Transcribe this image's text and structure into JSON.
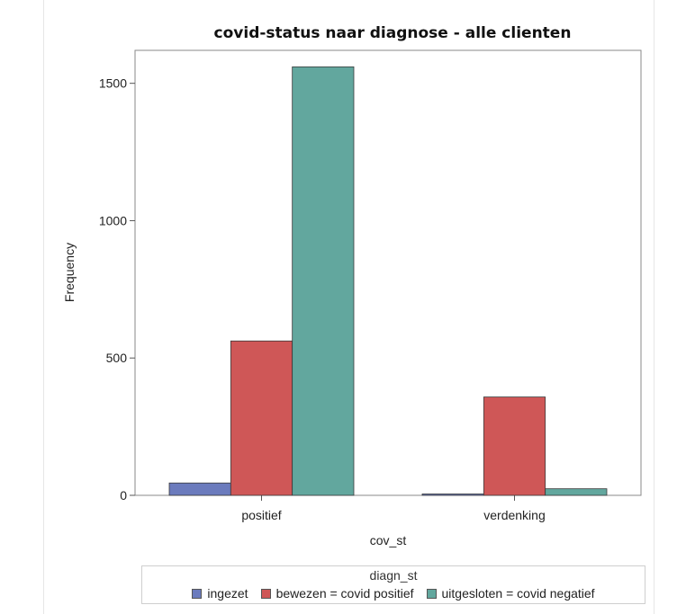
{
  "chart_data": {
    "type": "bar",
    "title": "covid-status naar diagnose - alle clienten",
    "xlabel": "cov_st",
    "ylabel": "Frequency",
    "categories": [
      "positief",
      "verdenking"
    ],
    "series": [
      {
        "name": "ingezet",
        "color": "#6b7bbd",
        "values": [
          45,
          5
        ]
      },
      {
        "name": "bewezen = covid positief",
        "color": "#cf5757",
        "values": [
          562,
          358
        ]
      },
      {
        "name": "uitgesloten = covid negatief",
        "color": "#62a79e",
        "values": [
          1560,
          24
        ]
      }
    ],
    "yticks": [
      0,
      500,
      1000,
      1500
    ],
    "ylim": [
      0,
      1620
    ],
    "grid": false,
    "legend": {
      "title": "diagn_st",
      "position": "bottom"
    }
  }
}
